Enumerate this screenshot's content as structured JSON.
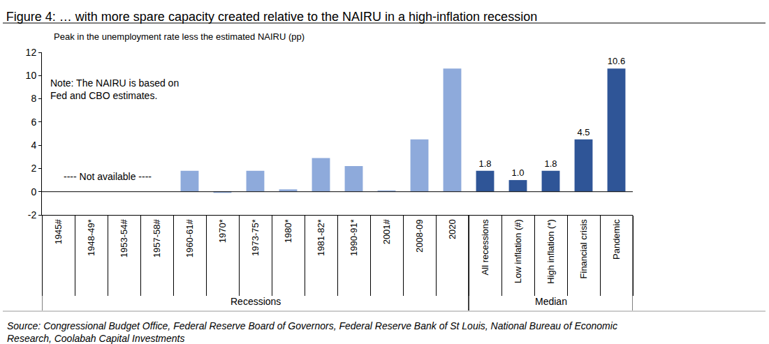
{
  "chart_data": {
    "type": "bar",
    "title": "Figure 4: … with more spare capacity created relative to the NAIRU in a high-inflation recession",
    "y_label": "Peak in the unemployment rate less the estimated NAIRU (pp)",
    "note": [
      "Note: The NAIRU is based on",
      "Fed and CBO estimates."
    ],
    "missing_label": "---- Not available ----",
    "source": [
      "Source: Congressional Budget Office, Federal Reserve Board of Governors, Federal Reserve Bank of St Louis, National Bureau of Economic",
      "Research, Coolabah Capital Investments"
    ],
    "groups": [
      {
        "name": "Recessions",
        "color": "#8eaadb",
        "data_labels": false,
        "categories": [
          "1945#",
          "1948-49*",
          "1953-54#",
          "1957-58#",
          "1960-61#",
          "1970*",
          "1973-75*",
          "1980*",
          "1981-82*",
          "1990-91*",
          "2001#",
          "2008-09",
          "2020"
        ],
        "values": [
          null,
          null,
          null,
          null,
          1.8,
          -0.1,
          1.8,
          0.2,
          2.9,
          2.2,
          0.1,
          4.5,
          10.6
        ]
      },
      {
        "name": "Median",
        "color": "#2f5597",
        "data_labels": true,
        "categories": [
          "All recessions",
          "Low inflation (#)",
          "High inflation (*)",
          "Financial crisis",
          "Pandemic"
        ],
        "values": [
          1.8,
          1.0,
          1.8,
          4.5,
          10.6
        ],
        "value_labels": [
          "1.8",
          "1.0",
          "1.8",
          "4.5",
          "10.6"
        ]
      }
    ],
    "ylim": [
      -2,
      12
    ],
    "yticks": [
      -2,
      0,
      2,
      4,
      6,
      8,
      10,
      12
    ],
    "grid": false
  }
}
